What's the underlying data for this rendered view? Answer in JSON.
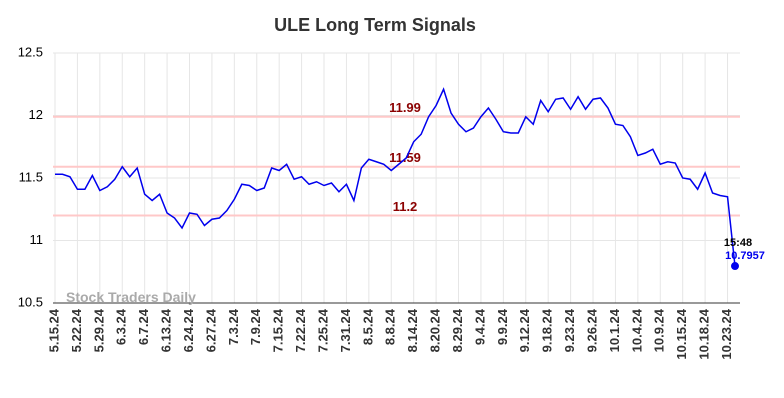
{
  "chart_data": {
    "type": "line",
    "title": "ULE Long Term Signals",
    "categories": [
      "5.15.24",
      null,
      null,
      "5.22.24",
      null,
      null,
      "5.29.24",
      null,
      null,
      "6.3.24",
      null,
      null,
      "6.7.24",
      null,
      null,
      "6.13.24",
      null,
      null,
      "6.24.24",
      null,
      null,
      "6.27.24",
      null,
      null,
      "7.3.24",
      null,
      null,
      "7.9.24",
      null,
      null,
      "7.15.24",
      null,
      null,
      "7.22.24",
      null,
      null,
      "7.25.24",
      null,
      null,
      "7.31.24",
      null,
      null,
      "8.5.24",
      null,
      null,
      "8.8.24",
      null,
      null,
      "8.14.24",
      null,
      null,
      "8.20.24",
      null,
      null,
      "8.29.24",
      null,
      null,
      "9.4.24",
      null,
      null,
      "9.9.24",
      null,
      null,
      "9.12.24",
      null,
      null,
      "9.18.24",
      null,
      null,
      "9.23.24",
      null,
      null,
      "9.26.24",
      null,
      null,
      "10.1.24",
      null,
      null,
      "10.4.24",
      null,
      null,
      "10.9.24",
      null,
      null,
      "10.15.24",
      null,
      null,
      "10.18.24",
      null,
      null,
      "10.23.24",
      null
    ],
    "values": [
      11.53,
      11.53,
      11.51,
      11.41,
      11.41,
      11.52,
      11.4,
      11.43,
      11.49,
      11.59,
      11.51,
      11.58,
      11.37,
      11.32,
      11.37,
      11.22,
      11.18,
      11.1,
      11.22,
      11.21,
      11.12,
      11.17,
      11.18,
      11.24,
      11.33,
      11.45,
      11.44,
      11.4,
      11.42,
      11.58,
      11.56,
      11.61,
      11.49,
      11.51,
      11.45,
      11.47,
      11.44,
      11.46,
      11.39,
      11.45,
      11.32,
      11.58,
      11.65,
      11.63,
      11.61,
      11.56,
      11.61,
      11.66,
      11.79,
      11.85,
      11.99,
      12.08,
      12.21,
      12.02,
      11.93,
      11.87,
      11.9,
      11.99,
      12.06,
      11.97,
      11.87,
      11.86,
      11.86,
      11.99,
      11.93,
      12.12,
      12.03,
      12.13,
      12.14,
      12.05,
      12.15,
      12.05,
      12.13,
      12.14,
      12.06,
      11.93,
      11.92,
      11.83,
      11.68,
      11.7,
      11.73,
      11.61,
      11.63,
      11.62,
      11.5,
      11.49,
      11.41,
      11.54,
      11.38,
      11.36,
      11.35,
      10.7957
    ],
    "color": "#0000ee",
    "ylim": [
      10.5,
      12.5
    ],
    "yticks": [
      10.5,
      11,
      11.5,
      12,
      12.5
    ],
    "grid": true,
    "levels": [
      11.99,
      11.59,
      11.2
    ],
    "level_color": "#8b0000",
    "last_time": "15:48",
    "watermark": "Stock Traders Daily"
  }
}
